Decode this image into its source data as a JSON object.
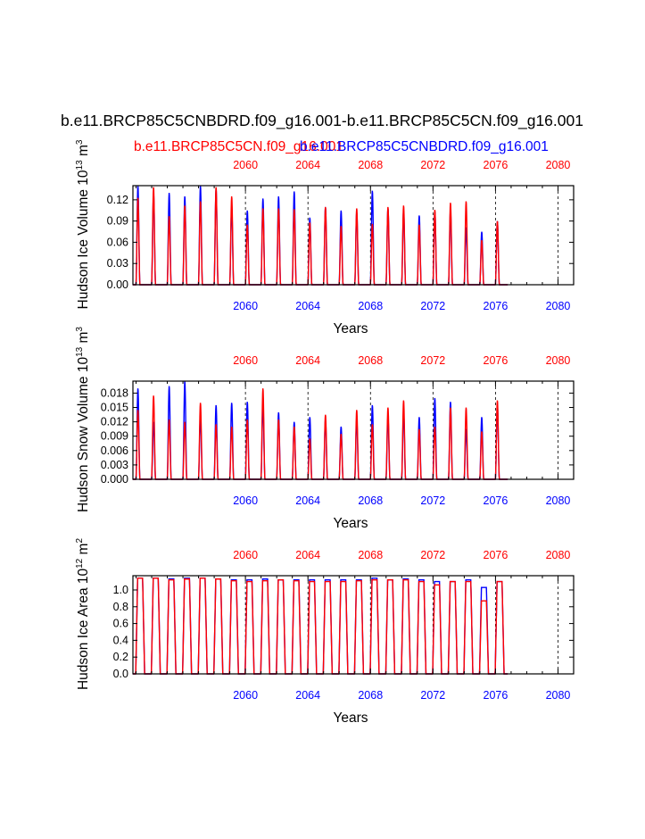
{
  "title": "b.e11.BRCP85C5CNBDRD.f09_g16.001-b.e11.BRCP85C5CN.f09_g16.001",
  "legend": {
    "red_label": "b.e11.BRCP85C5CN.f09_g16.001",
    "blue_label": "b.e11.BRCP85C5CNBDRD.f09_g16.001"
  },
  "colors": {
    "red": "#ff0000",
    "blue": "#0000ff",
    "black": "#000000"
  },
  "chart_data": [
    {
      "type": "line",
      "ylabel": "Hudson Ice Volume 10",
      "ylabel_exp": "13",
      "ylabel_unit": " m",
      "ylabel_unit_exp": "3",
      "xlabel": "Years",
      "xlim": [
        2052.8,
        2081.0
      ],
      "ylim": [
        0,
        0.14
      ],
      "yticks": [
        "0.00",
        "0.03",
        "0.06",
        "0.09",
        "0.12"
      ],
      "ytick_values": [
        0,
        0.03,
        0.06,
        0.09,
        0.12
      ],
      "xticks": [
        "2060",
        "2064",
        "2068",
        "2072",
        "2076",
        "2080"
      ],
      "xtick_values": [
        2060,
        2064,
        2068,
        2072,
        2076,
        2080
      ],
      "peak_shape": "narrow",
      "series": [
        {
          "name": "b.e11.BRCP85C5CNBDRD.f09_g16.001",
          "color": "#0000ff",
          "annual_peaks": [
            0.14,
            0.128,
            0.13,
            0.125,
            0.14,
            0.135,
            0.11,
            0.105,
            0.122,
            0.125,
            0.132,
            0.095,
            0.11,
            0.105,
            0.103,
            0.133,
            0.108,
            0.105,
            0.098,
            0.104,
            0.105,
            0.081,
            0.075,
            0.09
          ]
        },
        {
          "name": "b.e11.BRCP85C5CN.f09_g16.001",
          "color": "#ff0000",
          "annual_peaks": [
            0.123,
            0.138,
            0.097,
            0.112,
            0.118,
            0.138,
            0.125,
            0.085,
            0.108,
            0.108,
            0.107,
            0.088,
            0.11,
            0.083,
            0.108,
            0.086,
            0.11,
            0.112,
            0.085,
            0.106,
            0.116,
            0.118,
            0.063,
            0.09
          ]
        }
      ]
    },
    {
      "type": "line",
      "ylabel": "Hudson Snow Volume 10",
      "ylabel_exp": "13",
      "ylabel_unit": " m",
      "ylabel_unit_exp": "3",
      "xlabel": "Years",
      "xlim": [
        2052.8,
        2081.0
      ],
      "ylim": [
        0,
        0.0205
      ],
      "yticks": [
        "0.000",
        "0.003",
        "0.006",
        "0.009",
        "0.012",
        "0.015",
        "0.018"
      ],
      "ytick_values": [
        0,
        0.003,
        0.006,
        0.009,
        0.012,
        0.015,
        0.018
      ],
      "xticks": [
        "2060",
        "2064",
        "2068",
        "2072",
        "2076",
        "2080"
      ],
      "xtick_values": [
        2060,
        2064,
        2068,
        2072,
        2076,
        2080
      ],
      "peak_shape": "narrow",
      "series": [
        {
          "name": "b.e11.BRCP85C5CNBDRD.f09_g16.001",
          "color": "#0000ff",
          "annual_peaks": [
            0.019,
            0.012,
            0.0195,
            0.0205,
            0.013,
            0.0155,
            0.016,
            0.0162,
            0.0155,
            0.014,
            0.012,
            0.013,
            0.0125,
            0.011,
            0.0125,
            0.0155,
            0.013,
            0.014,
            0.013,
            0.017,
            0.0162,
            0.0105,
            0.013,
            0.0155
          ]
        },
        {
          "name": "b.e11.BRCP85C5CN.f09_g16.001",
          "color": "#ff0000",
          "annual_peaks": [
            0.0145,
            0.0175,
            0.0125,
            0.012,
            0.016,
            0.0115,
            0.011,
            0.0125,
            0.019,
            0.0125,
            0.011,
            0.0085,
            0.0135,
            0.0095,
            0.0145,
            0.0115,
            0.015,
            0.0165,
            0.0105,
            0.011,
            0.015,
            0.015,
            0.01,
            0.0165
          ]
        }
      ]
    },
    {
      "type": "line",
      "ylabel": "Hudson Ice Area 10",
      "ylabel_exp": "12",
      "ylabel_unit": " m",
      "ylabel_unit_exp": "2",
      "xlabel": "Years",
      "xlim": [
        2052.8,
        2081.0
      ],
      "ylim": [
        0,
        1.17
      ],
      "yticks": [
        "0.0",
        "0.2",
        "0.4",
        "0.6",
        "0.8",
        "1.0"
      ],
      "ytick_values": [
        0,
        0.2,
        0.4,
        0.6,
        0.8,
        1.0
      ],
      "xticks": [
        "2060",
        "2064",
        "2068",
        "2072",
        "2076",
        "2080"
      ],
      "xtick_values": [
        2060,
        2064,
        2068,
        2072,
        2076,
        2080
      ],
      "peak_shape": "plateau",
      "series": [
        {
          "name": "b.e11.BRCP85C5CNBDRD.f09_g16.001",
          "color": "#0000ff",
          "annual_peaks": [
            1.14,
            1.14,
            1.13,
            1.14,
            1.14,
            1.13,
            1.12,
            1.12,
            1.13,
            1.12,
            1.12,
            1.12,
            1.12,
            1.12,
            1.12,
            1.14,
            1.12,
            1.13,
            1.12,
            1.1,
            1.1,
            1.12,
            1.03,
            1.1
          ]
        },
        {
          "name": "b.e11.BRCP85C5CN.f09_g16.001",
          "color": "#ff0000",
          "annual_peaks": [
            1.14,
            1.14,
            1.12,
            1.13,
            1.14,
            1.13,
            1.11,
            1.1,
            1.11,
            1.12,
            1.11,
            1.1,
            1.1,
            1.1,
            1.11,
            1.12,
            1.12,
            1.12,
            1.1,
            1.06,
            1.1,
            1.1,
            0.87,
            1.1
          ]
        }
      ]
    }
  ]
}
